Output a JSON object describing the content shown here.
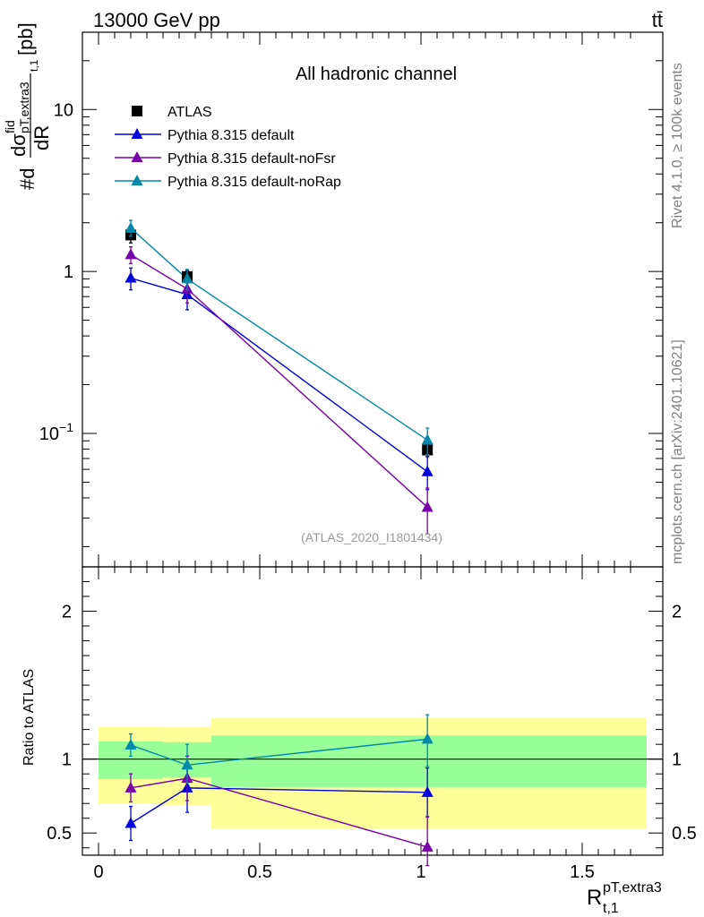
{
  "header": {
    "energy_label": "13000 GeV pp",
    "process_label": "tt̄"
  },
  "side_labels": {
    "rivet": "Rivet 4.1.0, ≥ 100k events",
    "mcplots": "mcplots.cern.ch [arXiv:2401.10621]"
  },
  "colors": {
    "atlas": "#000000",
    "default": "#0000dd",
    "noFsr": "#7700aa",
    "noRap": "#0088aa",
    "band_outer": "#ffff99",
    "band_inner": "#99ff99"
  },
  "chart_data": [
    {
      "type": "line",
      "title": "All hadronic channel",
      "ylabel": "#d dσ^fid_{pT,extra3} / dR_{t,1} [pb]",
      "ylabel_parts": {
        "prefix": "#d",
        "numerator": "dσ",
        "sup": "fid",
        "sub": "pT,extra3",
        "sub2": "t,1",
        "denominator": "dR",
        "unit": "[pb]"
      },
      "yscale": "log",
      "xlim": [
        -0.05,
        1.75
      ],
      "ylim": [
        0.015,
        30
      ],
      "yticks": [
        {
          "value": 0.1,
          "base": "10",
          "exp": "−1"
        },
        {
          "value": 1,
          "base": "1",
          "exp": ""
        },
        {
          "value": 10,
          "base": "10",
          "exp": ""
        }
      ],
      "watermark": "(ATLAS_2020_I1801434)",
      "legend_position": "top-left",
      "series": [
        {
          "name": "ATLAS",
          "color_key": "atlas",
          "marker": "square",
          "points": [
            {
              "x": 0.1,
              "y": 1.68,
              "ylo": 1.5,
              "yhi": 1.86
            },
            {
              "x": 0.275,
              "y": 0.93,
              "ylo": 0.85,
              "yhi": 1.01
            },
            {
              "x": 1.02,
              "y": 0.079,
              "ylo": 0.072,
              "yhi": 0.086
            }
          ]
        },
        {
          "name": "Pythia 8.315 default",
          "color_key": "default",
          "marker": "triangle",
          "points": [
            {
              "x": 0.1,
              "y": 0.91,
              "ylo": 0.77,
              "yhi": 1.05
            },
            {
              "x": 0.275,
              "y": 0.72,
              "ylo": 0.58,
              "yhi": 0.86
            },
            {
              "x": 1.02,
              "y": 0.058,
              "ylo": 0.045,
              "yhi": 0.072
            }
          ]
        },
        {
          "name": "Pythia 8.315 default-noFsr",
          "color_key": "noFsr",
          "marker": "triangle",
          "points": [
            {
              "x": 0.1,
              "y": 1.27,
              "ylo": 1.12,
              "yhi": 1.42
            },
            {
              "x": 0.275,
              "y": 0.78,
              "ylo": 0.64,
              "yhi": 0.92
            },
            {
              "x": 1.02,
              "y": 0.035,
              "ylo": 0.024,
              "yhi": 0.046
            }
          ]
        },
        {
          "name": "Pythia 8.315 default-noRap",
          "color_key": "noRap",
          "marker": "triangle",
          "points": [
            {
              "x": 0.1,
              "y": 1.85,
              "ylo": 1.65,
              "yhi": 2.07
            },
            {
              "x": 0.275,
              "y": 0.9,
              "ylo": 0.77,
              "yhi": 1.03
            },
            {
              "x": 1.02,
              "y": 0.091,
              "ylo": 0.074,
              "yhi": 0.108
            }
          ]
        }
      ]
    },
    {
      "type": "line",
      "title": "",
      "ylabel": "Ratio to ATLAS",
      "xlabel_parts": {
        "main": "R",
        "sup": "pT,extra3",
        "sub": "t,1"
      },
      "xlim": [
        -0.05,
        1.75
      ],
      "ylim": [
        0.35,
        2.3
      ],
      "xticks": [
        "0",
        "0.5",
        "1",
        "1.5"
      ],
      "xtick_values": [
        0,
        0.5,
        1,
        1.5
      ],
      "yticks": [
        "0.5",
        "1",
        "2"
      ],
      "ytick_values": [
        0.5,
        1,
        2
      ],
      "reference_line": 1,
      "bands": [
        {
          "x0": 0,
          "x1": 0.2,
          "inner_lo": 0.865,
          "inner_hi": 1.12,
          "outer_lo": 0.7,
          "outer_hi": 1.22
        },
        {
          "x0": 0.2,
          "x1": 0.35,
          "inner_lo": 0.875,
          "inner_hi": 1.115,
          "outer_lo": 0.69,
          "outer_hi": 1.215
        },
        {
          "x0": 0.35,
          "x1": 1.7,
          "inner_lo": 0.81,
          "inner_hi": 1.16,
          "outer_lo": 0.53,
          "outer_hi": 1.28
        }
      ],
      "series": [
        {
          "name": "Pythia 8.315 default",
          "color_key": "default",
          "points": [
            {
              "x": 0.1,
              "y": 0.565,
              "ylo": 0.45,
              "yhi": 0.68
            },
            {
              "x": 0.275,
              "y": 0.805,
              "ylo": 0.64,
              "yhi": 0.97
            },
            {
              "x": 1.02,
              "y": 0.775,
              "ylo": 0.61,
              "yhi": 0.94
            }
          ]
        },
        {
          "name": "Pythia 8.315 default-noFsr",
          "color_key": "noFsr",
          "points": [
            {
              "x": 0.1,
              "y": 0.805,
              "ylo": 0.71,
              "yhi": 0.9
            },
            {
              "x": 0.275,
              "y": 0.87,
              "ylo": 0.72,
              "yhi": 1.02
            },
            {
              "x": 1.02,
              "y": 0.405,
              "ylo": 0.28,
              "yhi": 0.61
            }
          ]
        },
        {
          "name": "Pythia 8.315 default-noRap",
          "color_key": "noRap",
          "points": [
            {
              "x": 0.1,
              "y": 1.095,
              "ylo": 1.02,
              "yhi": 1.17
            },
            {
              "x": 0.275,
              "y": 0.96,
              "ylo": 0.84,
              "yhi": 1.1
            },
            {
              "x": 1.02,
              "y": 1.135,
              "ylo": 0.95,
              "yhi": 1.3
            }
          ]
        }
      ]
    }
  ]
}
